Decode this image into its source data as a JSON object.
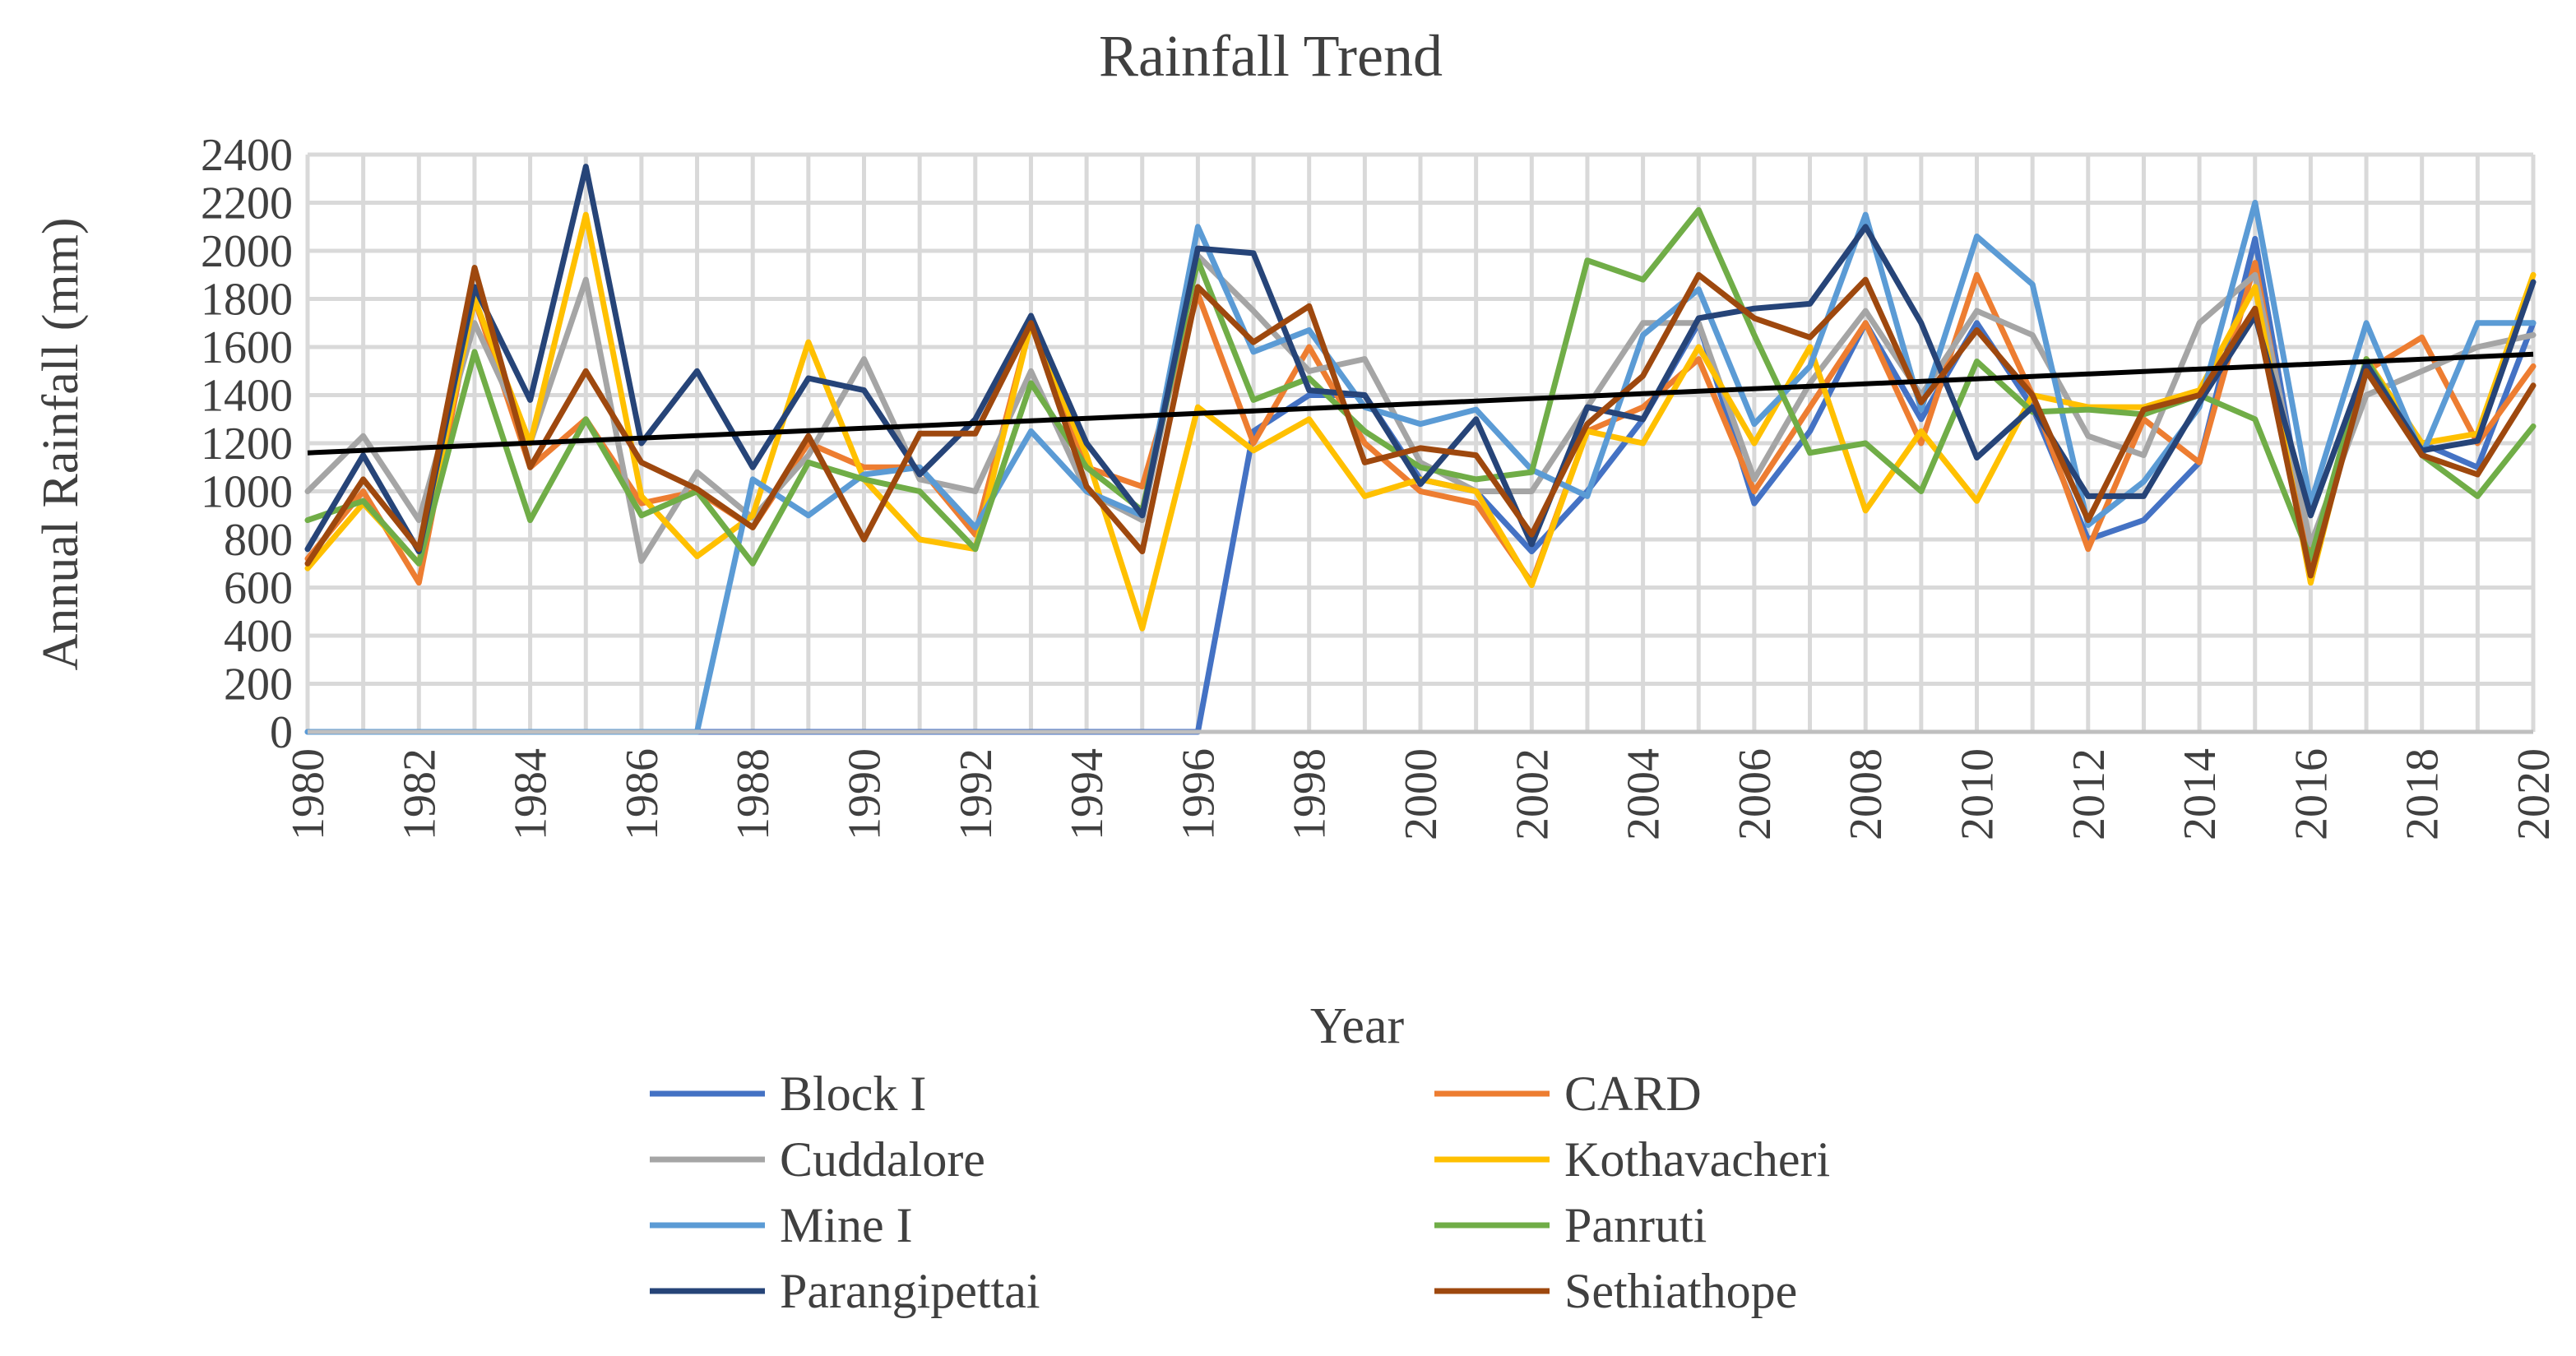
{
  "chart_data": {
    "type": "line",
    "title": "Rainfall Trend",
    "xlabel": "Year",
    "ylabel": "Annual Rainfall (mm)",
    "ylim": [
      0,
      2400
    ],
    "yticks": [
      0,
      200,
      400,
      600,
      800,
      1000,
      1200,
      1400,
      1600,
      1800,
      2000,
      2200,
      2400
    ],
    "ytick_labels": [
      "0",
      "200",
      "400",
      "600",
      "800",
      "1000",
      "1200",
      "1400",
      "1600",
      "1800",
      "2000",
      "2200",
      "2400"
    ],
    "xlim": [
      1980,
      2020
    ],
    "xticks": [
      1980,
      1982,
      1984,
      1986,
      1988,
      1990,
      1992,
      1994,
      1996,
      1998,
      2000,
      2002,
      2004,
      2006,
      2008,
      2010,
      2012,
      2014,
      2016,
      2018,
      2020
    ],
    "xtick_labels": [
      "1980",
      "1982",
      "1984",
      "1986",
      "1988",
      "1990",
      "1992",
      "1994",
      "1996",
      "1998",
      "2000",
      "2002",
      "2004",
      "2006",
      "2008",
      "2010",
      "2012",
      "2014",
      "2016",
      "2018",
      "2020"
    ],
    "grid": true,
    "legend_position": "bottom",
    "x": [
      1980,
      1981,
      1982,
      1983,
      1984,
      1985,
      1986,
      1987,
      1988,
      1989,
      1990,
      1991,
      1992,
      1993,
      1994,
      1995,
      1996,
      1997,
      1998,
      1999,
      2000,
      2001,
      2002,
      2003,
      2004,
      2005,
      2006,
      2007,
      2008,
      2009,
      2010,
      2011,
      2012,
      2013,
      2014,
      2015,
      2016,
      2017,
      2018,
      2019,
      2020
    ],
    "series": [
      {
        "name": "Block I",
        "color": "#4472c4",
        "values": [
          0,
          0,
          0,
          0,
          0,
          0,
          0,
          0,
          0,
          0,
          0,
          0,
          0,
          0,
          0,
          0,
          0,
          1250,
          1400,
          1400,
          1050,
          1000,
          750,
          1000,
          1300,
          1700,
          950,
          1250,
          1700,
          1300,
          1700,
          1350,
          800,
          880,
          1120,
          2050,
          720,
          1500,
          1200,
          1100,
          1700
        ]
      },
      {
        "name": "CARD",
        "color": "#ed7d31",
        "values": [
          720,
          1000,
          620,
          1800,
          1100,
          1300,
          950,
          1000,
          850,
          1200,
          1100,
          1100,
          820,
          1700,
          1100,
          1020,
          1820,
          1200,
          1600,
          1200,
          1000,
          950,
          620,
          1250,
          1350,
          1550,
          1000,
          1350,
          1700,
          1200,
          1900,
          1400,
          760,
          1300,
          1120,
          1950,
          700,
          1500,
          1640,
          1200,
          1520
        ]
      },
      {
        "name": "Cuddalore",
        "color": "#a5a5a5",
        "values": [
          1000,
          1230,
          880,
          1700,
          1200,
          1880,
          710,
          1080,
          890,
          1150,
          1550,
          1050,
          1000,
          1500,
          1000,
          880,
          1980,
          1750,
          1500,
          1550,
          1120,
          1000,
          1000,
          1350,
          1700,
          1700,
          1050,
          1450,
          1750,
          1400,
          1750,
          1650,
          1230,
          1150,
          1700,
          1900,
          780,
          1400,
          1500,
          1600,
          1650
        ]
      },
      {
        "name": "Kothavacheri",
        "color": "#ffc000",
        "values": [
          680,
          950,
          700,
          1800,
          1200,
          2150,
          980,
          730,
          900,
          1620,
          1050,
          800,
          760,
          1700,
          1150,
          430,
          1350,
          1170,
          1300,
          980,
          1050,
          1000,
          610,
          1250,
          1200,
          1600,
          1200,
          1600,
          920,
          1250,
          960,
          1400,
          1350,
          1350,
          1420,
          1850,
          620,
          1550,
          1200,
          1240,
          1900
        ]
      },
      {
        "name": "Mine I",
        "color": "#5b9bd5",
        "values": [
          0,
          0,
          0,
          0,
          0,
          0,
          0,
          0,
          1050,
          900,
          1070,
          1100,
          850,
          1250,
          1000,
          900,
          2100,
          1580,
          1670,
          1350,
          1280,
          1340,
          1090,
          980,
          1650,
          1840,
          1280,
          1520,
          2150,
          1340,
          2060,
          1860,
          860,
          1040,
          1350,
          2200,
          950,
          1700,
          1150,
          1700,
          1700
        ]
      },
      {
        "name": "Panruti",
        "color": "#70ad47",
        "values": [
          880,
          960,
          700,
          1580,
          880,
          1300,
          900,
          1000,
          700,
          1120,
          1050,
          1000,
          760,
          1450,
          1100,
          920,
          1960,
          1380,
          1470,
          1250,
          1100,
          1050,
          1080,
          1960,
          1880,
          2170,
          1650,
          1160,
          1200,
          1000,
          1540,
          1330,
          1340,
          1320,
          1400,
          1300,
          720,
          1550,
          1150,
          980,
          1270
        ]
      },
      {
        "name": "Parangipettai",
        "color": "#264478",
        "values": [
          760,
          1150,
          750,
          1850,
          1380,
          2350,
          1200,
          1500,
          1100,
          1470,
          1420,
          1070,
          1300,
          1730,
          1200,
          900,
          2010,
          1990,
          1420,
          1400,
          1030,
          1300,
          780,
          1350,
          1300,
          1720,
          1760,
          1780,
          2100,
          1700,
          1140,
          1350,
          980,
          980,
          1370,
          1730,
          900,
          1530,
          1170,
          1210,
          1870
        ]
      },
      {
        "name": "Sethiathope",
        "color": "#9e480e",
        "values": [
          700,
          1050,
          760,
          1930,
          1100,
          1500,
          1120,
          1010,
          850,
          1230,
          800,
          1240,
          1240,
          1700,
          1020,
          750,
          1850,
          1620,
          1770,
          1120,
          1180,
          1150,
          820,
          1280,
          1480,
          1900,
          1720,
          1640,
          1880,
          1370,
          1670,
          1400,
          880,
          1340,
          1400,
          1760,
          650,
          1500,
          1150,
          1070,
          1440
        ]
      }
    ],
    "trendline": {
      "x": [
        1980,
        2020
      ],
      "values": [
        1160,
        1570
      ]
    }
  }
}
